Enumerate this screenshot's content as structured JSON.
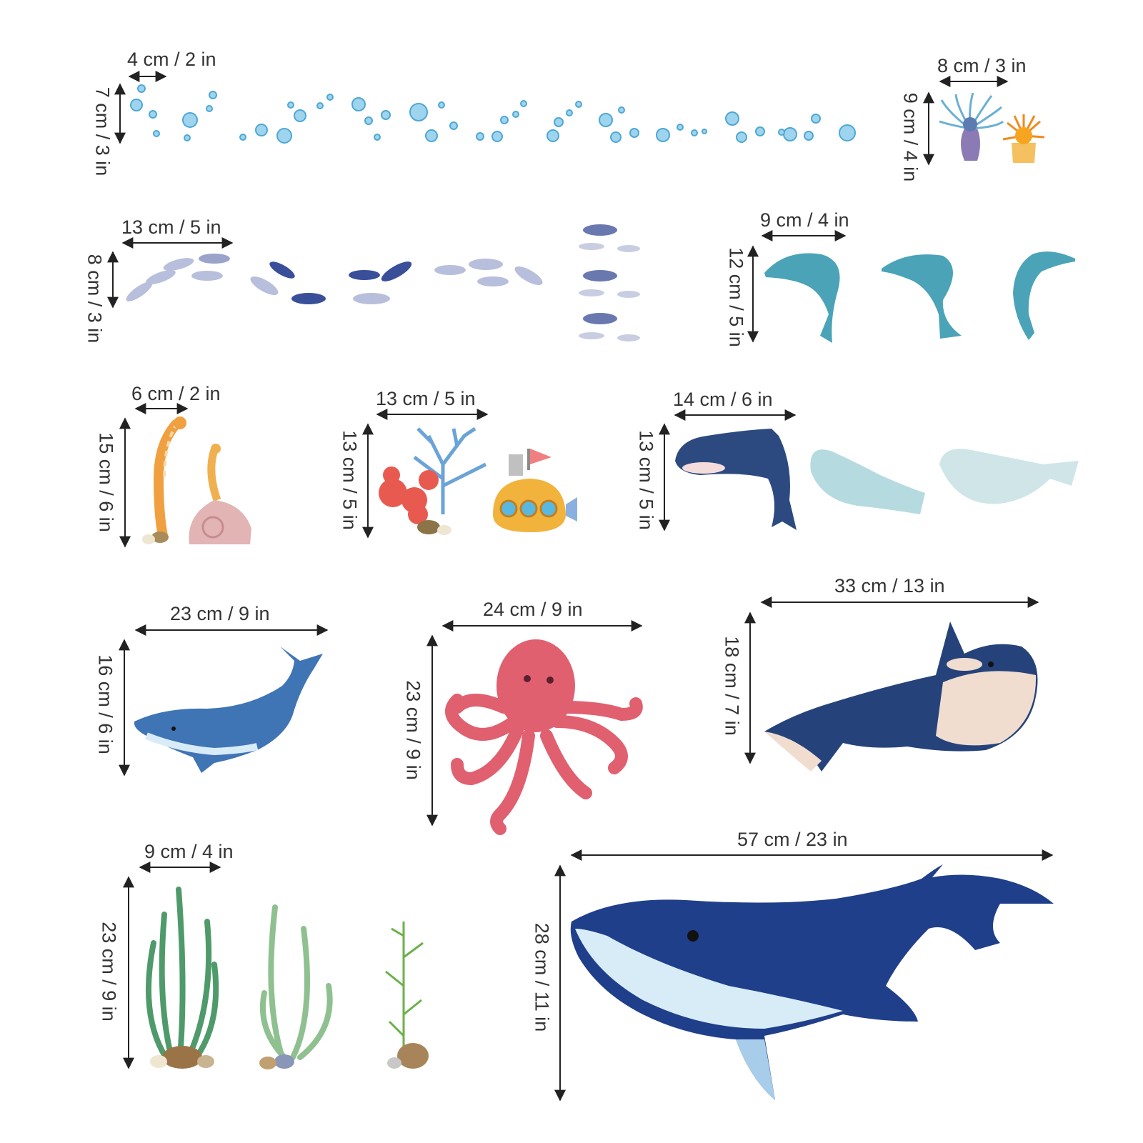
{
  "stickers": {
    "bubbles": {
      "width": "4 cm / 2 in",
      "height": "7 cm / 3 in",
      "colors": [
        "#5fb3d9",
        "#9fd4ee"
      ]
    },
    "anemones": {
      "width": "8 cm / 3 in",
      "height": "9 cm / 4 in",
      "colors": [
        "#7aa8d6",
        "#f5a623"
      ]
    },
    "fish": {
      "width": "13 cm / 5 in",
      "height": "8 cm / 3 in",
      "colors": [
        "#3a4f9a",
        "#b8bfdc"
      ]
    },
    "dolphins": {
      "width": "9 cm / 4 in",
      "height": "12 cm / 5 in",
      "colors": [
        "#4ba3b8"
      ]
    },
    "eels": {
      "width": "6 cm / 2 in",
      "height": "15 cm / 6 in",
      "colors": [
        "#f0a040",
        "#d9a0a0"
      ]
    },
    "coral_sub": {
      "width": "13 cm / 5 in",
      "height": "13 cm / 5 in",
      "colors": [
        "#e85a4f",
        "#6aa3d8",
        "#f2b33d"
      ]
    },
    "orca_belugas": {
      "width": "14 cm / 6 in",
      "height": "13 cm / 5 in",
      "colors": [
        "#2c4a80",
        "#b5dbe0"
      ]
    },
    "blue_whale_small": {
      "width": "23 cm / 9 in",
      "height": "16 cm / 6 in",
      "colors": [
        "#3f74b5"
      ]
    },
    "octopus": {
      "width": "24 cm / 9 in",
      "height": "23 cm / 9 in",
      "colors": [
        "#e06070"
      ]
    },
    "orca_large": {
      "width": "33 cm / 13 in",
      "height": "18 cm / 7 in",
      "colors": [
        "#25437a",
        "#f1ddd0"
      ]
    },
    "seaweed": {
      "width": "9 cm / 4 in",
      "height": "23 cm / 9 in",
      "colors": [
        "#4f9a6a",
        "#8fc090"
      ]
    },
    "humpback": {
      "width": "57 cm / 23 in",
      "height": "28 cm / 11 in",
      "colors": [
        "#1f3f8a",
        "#d8ecf8"
      ]
    }
  }
}
